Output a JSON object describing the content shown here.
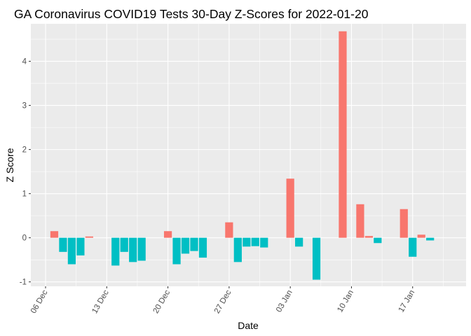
{
  "chart_data": {
    "type": "bar",
    "title": "GA Coronavirus COVID19 Tests 30-Day Z-Scores for 2022-01-20",
    "xlabel": "Date",
    "ylabel": "Z Score",
    "x_ticks": [
      "06 Dec",
      "13 Dec",
      "20 Dec",
      "27 Dec",
      "03 Jan",
      "10 Jan",
      "17 Jan"
    ],
    "y_ticks": [
      -1,
      0,
      1,
      2,
      3,
      4
    ],
    "ylim": [
      -1.1,
      4.85
    ],
    "grid": true,
    "legend": "none",
    "colors": {
      "positive": "#F8766D",
      "negative": "#00BFC4",
      "panel": "#EBEBEB",
      "grid": "#FFFFFF"
    },
    "x": [
      "2021-12-07",
      "2021-12-08",
      "2021-12-09",
      "2021-12-10",
      "2021-12-11",
      "2021-12-14",
      "2021-12-15",
      "2021-12-16",
      "2021-12-17",
      "2021-12-20",
      "2021-12-21",
      "2021-12-22",
      "2021-12-23",
      "2021-12-24",
      "2021-12-27",
      "2021-12-28",
      "2021-12-29",
      "2021-12-30",
      "2021-12-31",
      "2022-01-03",
      "2022-01-04",
      "2022-01-06",
      "2022-01-09",
      "2022-01-11",
      "2022-01-12",
      "2022-01-13",
      "2022-01-16",
      "2022-01-17",
      "2022-01-18",
      "2022-01-19"
    ],
    "values": [
      0.15,
      -0.32,
      -0.6,
      -0.4,
      0.03,
      -0.63,
      -0.32,
      -0.55,
      -0.52,
      0.15,
      -0.6,
      -0.36,
      -0.3,
      -0.45,
      0.35,
      -0.55,
      -0.2,
      -0.19,
      -0.22,
      1.34,
      -0.2,
      -0.95,
      4.68,
      0.76,
      0.04,
      -0.12,
      0.65,
      -0.43,
      0.07,
      -0.06
    ]
  }
}
